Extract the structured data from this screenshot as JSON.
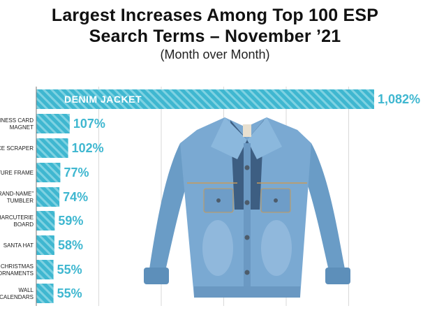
{
  "chart_data": {
    "type": "bar",
    "orientation": "horizontal",
    "title": "Largest Increases Among Top 100 ESP\nSearch Terms – November ’21",
    "title_lines": [
      "Largest Increases Among Top 100 ESP",
      "Search Terms – November ’21"
    ],
    "subtitle": "(Month over Month)",
    "categories": [
      "DENIM JACKET",
      "BUSINESS CARD MAGNET",
      "ICE SCRAPER",
      "PICTURE FRAME",
      "“BRAND-NAME” TUMBLER",
      "CHARCUTERIE BOARD",
      "SANTA HAT",
      "CHRISTMAS ORNAMENTS",
      "WALL CALENDARS"
    ],
    "category_lines": [
      [
        "DENIM JACKET"
      ],
      [
        "BUSINESS CARD",
        "MAGNET"
      ],
      [
        "ICE SCRAPER"
      ],
      [
        "PICTURE FRAME"
      ],
      [
        "“BRAND-NAME”",
        "TUMBLER"
      ],
      [
        "CHARCUTERIE",
        "BOARD"
      ],
      [
        "SANTA HAT"
      ],
      [
        "CHRISTMAS",
        "ORNAMENTS"
      ],
      [
        "WALL",
        "CALENDARS"
      ]
    ],
    "values": [
      1082,
      107,
      102,
      77,
      74,
      59,
      58,
      55,
      55
    ],
    "value_labels": [
      "1,082%",
      "107%",
      "102%",
      "77%",
      "74%",
      "59%",
      "58%",
      "55%",
      "55%"
    ],
    "unit": "%",
    "xlim": [
      0,
      1082
    ],
    "grid": true,
    "bar_color": "#3fb7d0",
    "bar_pattern": "diagonal-stripes",
    "legend": "none",
    "image": "denim-jacket-photo"
  }
}
